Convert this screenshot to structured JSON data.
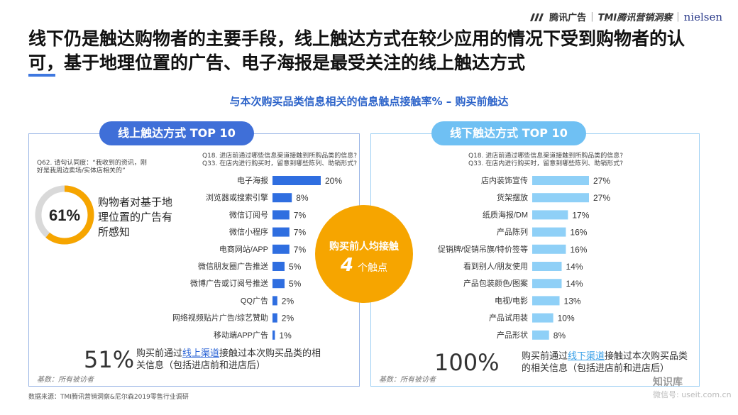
{
  "brand": {
    "tencent_ad": "腾讯广告",
    "tmi": "TMI腾讯营销洞察",
    "nielsen": "nielsen"
  },
  "headline": "线下仍是触达购物者的主要手段，线上触达方式在较少应用的情况下受到购物者的认可，基于地理位置的广告、电子海报是最受关注的线上触达方式",
  "subtitle": "与本次购买品类信息相关的信息触点接触率% – 购买前触达",
  "left_panel": {
    "pill": "线上触达方式 TOP 10",
    "q62": "Q62. 请句认同度：“我收到的资讯，刚好是我周边卖场/实体店相关的”",
    "q18": "Q18. 进店前通过哪些信息渠道接触到所购品类的信息?",
    "q33": "Q33. 在店内进行购买时，留意到哪些陈列、助销形式?",
    "gauge_value": "61%",
    "gauge_fraction": 0.61,
    "gauge_text": "购物者对基于地理位置的广告有所感知",
    "summary_pct": "51%",
    "summary_pre": "购买前通过",
    "summary_link": "线上渠道",
    "summary_post": "接触过本次购买品类的相关信息（包括进店前和进店后）",
    "base": "基数：所有被访者"
  },
  "right_panel": {
    "pill": "线下触达方式 TOP 10",
    "q18": "Q18. 进店前通过哪些信息渠道接触到所购品类的信息?",
    "q33": "Q33. 在店内进行购买时，留意到哪些陈列、助销形式?",
    "summary_pct": "100%",
    "summary_pre": "购买前通过",
    "summary_link": "线下渠道",
    "summary_post": "接触过本次购买品类的相关信息（包括进店前和进店后）",
    "base": "基数：所有被访者"
  },
  "center": {
    "line1": "购买前人均接触",
    "number": "4",
    "unit": "个触点"
  },
  "source": "数据来源：TMI腾讯营销洞察&尼尔森2019零售行业调研",
  "watermark": {
    "name": "知识库",
    "sub": "微信号: useit.com.cn"
  },
  "chart_data": [
    {
      "type": "bar",
      "orientation": "horizontal",
      "title": "线上触达方式 TOP 10",
      "color": "#2f6ee0",
      "categories": [
        "电子海报",
        "浏览器或搜索引擎",
        "微信订阅号",
        "微信小程序",
        "电商网站/APP",
        "微信朋友圈广告推送",
        "微博广告或订阅号推送",
        "QQ广告",
        "网络视频贴片广告/综艺赞助",
        "移动端APP广告"
      ],
      "values": [
        20,
        8,
        7,
        7,
        7,
        5,
        5,
        2,
        2,
        1
      ],
      "labels": [
        "20%",
        "8%",
        "7%",
        "7%",
        "7%",
        "5%",
        "5%",
        "2%",
        "2%",
        "1%"
      ]
    },
    {
      "type": "bar",
      "orientation": "horizontal",
      "title": "线下触达方式 TOP 10",
      "color": "#8fd0f7",
      "categories": [
        "店内装饰宣传",
        "货架摆放",
        "纸质海报/DM",
        "产品陈列",
        "促销牌/促销吊旗/特价签等",
        "看到别人/朋友使用",
        "产品包装颜色/图案",
        "电视/电影",
        "产品试用装",
        "产品形状"
      ],
      "values": [
        27,
        27,
        17,
        16,
        16,
        14,
        14,
        13,
        10,
        8
      ],
      "labels": [
        "27%",
        "27%",
        "17%",
        "16%",
        "16%",
        "14%",
        "14%",
        "13%",
        "10%",
        "8%"
      ]
    }
  ]
}
